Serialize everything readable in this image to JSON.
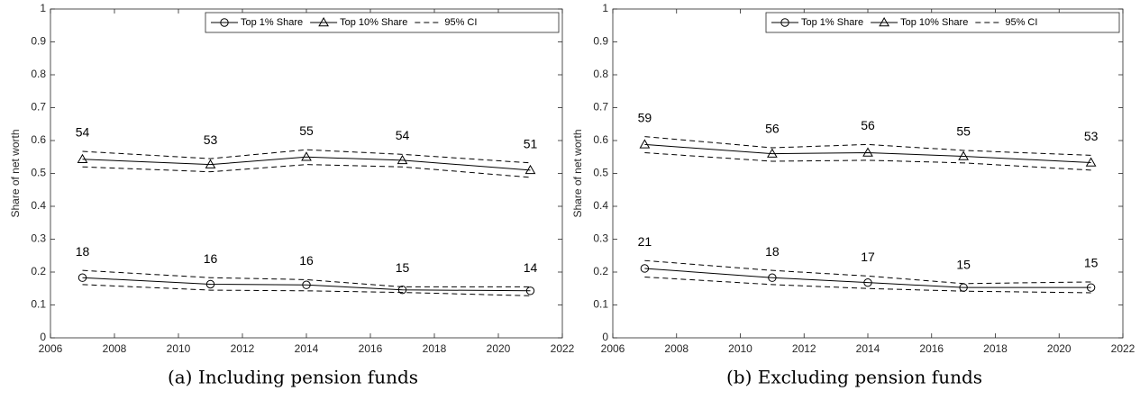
{
  "chart_data": [
    {
      "type": "line",
      "caption": "(a) Including pension funds",
      "ylabel": "Share of net worth",
      "x": [
        2007,
        2011,
        2014,
        2017,
        2021
      ],
      "xlim": [
        2006,
        2022
      ],
      "xticks": [
        2006,
        2008,
        2010,
        2012,
        2014,
        2016,
        2018,
        2020,
        2022
      ],
      "ylim": [
        0,
        1
      ],
      "yticks": [
        0,
        0.1,
        0.2,
        0.3,
        0.4,
        0.5,
        0.6,
        0.7,
        0.8,
        0.9,
        1
      ],
      "legend": "upper right",
      "ci_name": "95% CI",
      "color": "#000000",
      "series": [
        {
          "name": "Top 1% Share",
          "marker": "circle",
          "values": [
            0.183,
            0.163,
            0.161,
            0.146,
            0.143
          ],
          "value_labels": [
            "18",
            "16",
            "16",
            "15",
            "14"
          ],
          "ci_lower": [
            0.162,
            0.145,
            0.143,
            0.138,
            0.128
          ],
          "ci_upper": [
            0.205,
            0.183,
            0.177,
            0.155,
            0.155
          ]
        },
        {
          "name": "Top 10% Share",
          "marker": "triangle",
          "values": [
            0.543,
            0.527,
            0.55,
            0.54,
            0.51
          ],
          "value_labels": [
            "54",
            "53",
            "55",
            "54",
            "51"
          ],
          "ci_lower": [
            0.52,
            0.505,
            0.527,
            0.52,
            0.488
          ],
          "ci_upper": [
            0.567,
            0.545,
            0.572,
            0.558,
            0.532
          ]
        }
      ]
    },
    {
      "type": "line",
      "caption": "(b) Excluding pension funds",
      "ylabel": "Share of net worth",
      "x": [
        2007,
        2011,
        2014,
        2017,
        2021
      ],
      "xlim": [
        2006,
        2022
      ],
      "xticks": [
        2006,
        2008,
        2010,
        2012,
        2014,
        2016,
        2018,
        2020,
        2022
      ],
      "ylim": [
        0,
        1
      ],
      "yticks": [
        0,
        0.1,
        0.2,
        0.3,
        0.4,
        0.5,
        0.6,
        0.7,
        0.8,
        0.9,
        1
      ],
      "legend": "upper right",
      "ci_name": "95% CI",
      "color": "#000000",
      "series": [
        {
          "name": "Top 1% Share",
          "marker": "circle",
          "values": [
            0.211,
            0.183,
            0.168,
            0.153,
            0.153
          ],
          "value_labels": [
            "21",
            "18",
            "17",
            "15",
            "15"
          ],
          "ci_lower": [
            0.185,
            0.162,
            0.15,
            0.142,
            0.137
          ],
          "ci_upper": [
            0.235,
            0.205,
            0.188,
            0.165,
            0.17
          ]
        },
        {
          "name": "Top 10% Share",
          "marker": "triangle",
          "values": [
            0.588,
            0.56,
            0.563,
            0.552,
            0.533
          ],
          "value_labels": [
            "59",
            "56",
            "56",
            "55",
            "53"
          ],
          "ci_lower": [
            0.563,
            0.537,
            0.54,
            0.532,
            0.51
          ],
          "ci_upper": [
            0.612,
            0.578,
            0.588,
            0.57,
            0.555
          ]
        }
      ]
    }
  ]
}
